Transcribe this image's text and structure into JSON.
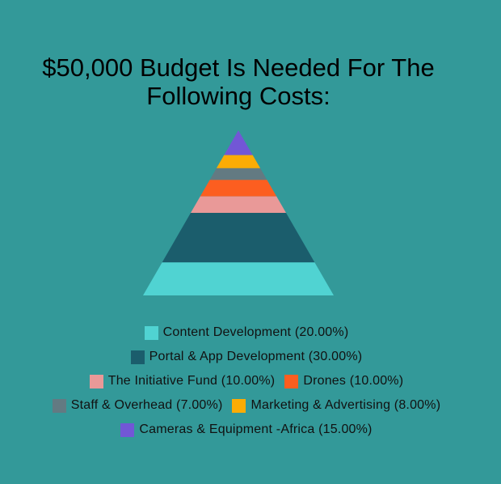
{
  "chart_data": {
    "type": "pyramid",
    "title_lines": [
      "$50,000 Budget Is Needed For The",
      "Following Costs:"
    ],
    "segments": [
      {
        "name": "Cameras & Equipment -Africa",
        "percent": "15.00%",
        "value": 15,
        "color": "#7257d6"
      },
      {
        "name": "Marketing & Advertising",
        "percent": "8.00%",
        "value": 8,
        "color": "#fbac05"
      },
      {
        "name": "Staff & Overhead",
        "percent": "7.00%",
        "value": 7,
        "color": "#637a82"
      },
      {
        "name": "Drones",
        "percent": "10.00%",
        "value": 10,
        "color": "#fc5e20"
      },
      {
        "name": "The Initiative Fund",
        "percent": "10.00%",
        "value": 10,
        "color": "#e99998"
      },
      {
        "name": "Portal & App Development",
        "percent": "30.00%",
        "value": 30,
        "color": "#1b5d6c"
      },
      {
        "name": "Content Development",
        "percent": "20.00%",
        "value": 20,
        "color": "#50d3d2"
      }
    ],
    "legend_rows": [
      [
        0
      ],
      [
        1
      ],
      [
        2,
        3
      ],
      [
        4,
        5
      ],
      [
        6
      ]
    ],
    "legend_items": [
      {
        "label": "Content Development (20.00%)",
        "color": "#50d3d2"
      },
      {
        "label": "Portal & App Development (30.00%)",
        "color": "#1b5d6c"
      },
      {
        "label": "The Initiative Fund (10.00%)",
        "color": "#e99998"
      },
      {
        "label": "Drones (10.00%)",
        "color": "#fc5e20"
      },
      {
        "label": "Staff & Overhead (7.00%)",
        "color": "#637a82"
      },
      {
        "label": "Marketing & Advertising (8.00%)",
        "color": "#fbac05"
      },
      {
        "label": "Cameras & Equipment -Africa (15.00%)",
        "color": "#7257d6"
      }
    ],
    "legend_placement": "bottom"
  }
}
